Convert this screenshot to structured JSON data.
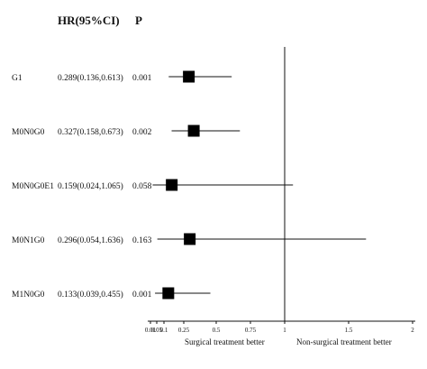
{
  "chart_data": {
    "type": "forest",
    "headers": {
      "hr": "HR(95%CI)",
      "p": "P"
    },
    "rows": [
      {
        "label": "G1",
        "hr_text": "0.289(0.136,0.613)",
        "p": "0.001",
        "hr": 0.289,
        "lo": 0.136,
        "hi": 0.613
      },
      {
        "label": "M0N0G0",
        "hr_text": "0.327(0.158,0.673)",
        "p": "0.002",
        "hr": 0.327,
        "lo": 0.158,
        "hi": 0.673
      },
      {
        "label": "M0N0G0E1",
        "hr_text": "0.159(0.024,1.065)",
        "p": "0.058",
        "hr": 0.159,
        "lo": 0.024,
        "hi": 1.065
      },
      {
        "label": "M0N1G0",
        "hr_text": "0.296(0.054,1.636)",
        "p": "0.163",
        "hr": 0.296,
        "lo": 0.054,
        "hi": 1.636
      },
      {
        "label": "M1N0G0",
        "hr_text": "0.133(0.039,0.455)",
        "p": "0.001",
        "hr": 0.133,
        "lo": 0.039,
        "hi": 0.455
      }
    ],
    "x_ticks": [
      {
        "value": 0.01,
        "label": "0.01"
      },
      {
        "value": 0.05,
        "label": "0.05"
      },
      {
        "value": 0.1,
        "label": "0.1"
      },
      {
        "value": 0.25,
        "label": "0.25"
      },
      {
        "value": 0.5,
        "label": "0.5"
      },
      {
        "value": 0.75,
        "label": "0.75"
      },
      {
        "value": 1,
        "label": "1"
      },
      {
        "value": 1.5,
        "label": "1.5"
      },
      {
        "value": 2,
        "label": "2"
      }
    ],
    "xlim": [
      0.01,
      2
    ],
    "reference_line": 1,
    "left_note": "Surgical treatment better",
    "right_note": "Non-surgical treatment better"
  }
}
